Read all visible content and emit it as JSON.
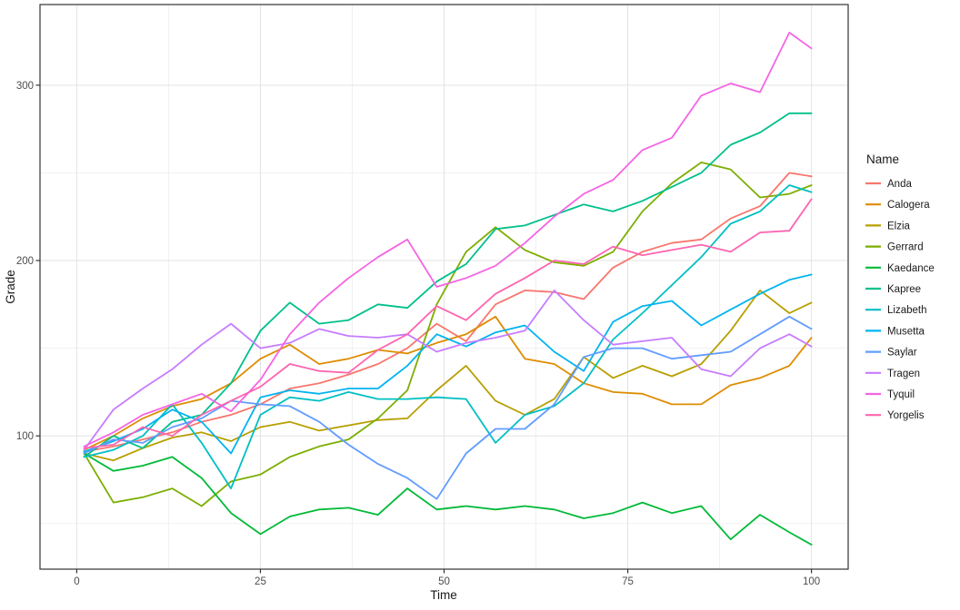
{
  "colors": {
    "background": "#FFFFFF",
    "panel_border": "#333333",
    "grid_major": "#E3E3E3",
    "grid_minor": "#F0F0F0",
    "tick_mark": "#333333",
    "tick_label": "#4D4D4D",
    "axis_title": "#1A1A1A",
    "legend_text": "#1A1A1A"
  },
  "chart_data": {
    "type": "line",
    "title": "",
    "xlabel": "Time",
    "ylabel": "Grade",
    "legend_title": "Name",
    "legend_position": "right",
    "grid": true,
    "xlim": [
      -5,
      105
    ],
    "ylim": [
      24,
      346
    ],
    "x_ticks": [
      0,
      25,
      50,
      75,
      100
    ],
    "x_minor_ticks": [
      12.5,
      37.5,
      62.5,
      87.5
    ],
    "y_ticks": [
      100,
      200,
      300
    ],
    "y_minor_ticks": [
      50,
      150,
      250
    ],
    "x": [
      1,
      5,
      9,
      13,
      17,
      21,
      25,
      29,
      33,
      37,
      41,
      45,
      49,
      53,
      57,
      61,
      65,
      69,
      73,
      77,
      81,
      85,
      89,
      93,
      97,
      100
    ],
    "series": [
      {
        "name": "Anda",
        "color": "#F8766D",
        "values": [
          91,
          94,
          98,
          102,
          108,
          112,
          118,
          127,
          130,
          135,
          141,
          150,
          164,
          154,
          175,
          183,
          182,
          178,
          196,
          205,
          210,
          212,
          224,
          231,
          250,
          248
        ]
      },
      {
        "name": "Calogera",
        "color": "#DE8C00",
        "values": [
          92,
          100,
          110,
          117,
          121,
          130,
          144,
          152,
          141,
          144,
          149,
          147,
          153,
          158,
          168,
          144,
          141,
          130,
          125,
          124,
          118,
          118,
          129,
          133,
          140,
          156
        ]
      },
      {
        "name": "Elzia",
        "color": "#B79F00",
        "values": [
          90,
          86,
          93,
          99,
          102,
          97,
          105,
          108,
          103,
          106,
          109,
          110,
          126,
          140,
          120,
          112,
          121,
          145,
          133,
          140,
          134,
          141,
          160,
          183,
          170,
          176
        ]
      },
      {
        "name": "Gerrard",
        "color": "#7CAE00",
        "values": [
          90,
          62,
          65,
          70,
          60,
          74,
          78,
          88,
          94,
          98,
          110,
          126,
          175,
          205,
          219,
          206,
          199,
          197,
          205,
          228,
          244,
          256,
          252,
          236,
          238,
          243
        ]
      },
      {
        "name": "Kaedance",
        "color": "#00BA38",
        "values": [
          90,
          80,
          83,
          88,
          76,
          56,
          44,
          54,
          58,
          59,
          55,
          70,
          58,
          60,
          58,
          60,
          58,
          53,
          56,
          62,
          56,
          60,
          41,
          55,
          45,
          38
        ]
      },
      {
        "name": "Kapree",
        "color": "#00C08B",
        "values": [
          88,
          100,
          93,
          108,
          112,
          130,
          160,
          176,
          164,
          166,
          175,
          173,
          188,
          198,
          218,
          220,
          226,
          232,
          228,
          234,
          242,
          250,
          266,
          273,
          284,
          284
        ]
      },
      {
        "name": "Lizabeth",
        "color": "#00BFC4",
        "values": [
          88,
          92,
          100,
          118,
          96,
          70,
          112,
          122,
          120,
          125,
          121,
          121,
          122,
          121,
          96,
          112,
          117,
          130,
          155,
          170,
          186,
          202,
          221,
          228,
          243,
          239
        ]
      },
      {
        "name": "Musetta",
        "color": "#00B4F0",
        "values": [
          91,
          97,
          104,
          115,
          108,
          90,
          122,
          126,
          124,
          127,
          127,
          140,
          158,
          151,
          159,
          163,
          148,
          137,
          165,
          174,
          177,
          163,
          172,
          181,
          189,
          192
        ]
      },
      {
        "name": "Saylar",
        "color": "#619CFF",
        "values": [
          90,
          98,
          96,
          105,
          110,
          120,
          118,
          117,
          108,
          95,
          84,
          76,
          64,
          90,
          104,
          104,
          118,
          145,
          150,
          150,
          144,
          146,
          148,
          158,
          168,
          161
        ]
      },
      {
        "name": "Tragen",
        "color": "#C77CFF",
        "values": [
          92,
          115,
          127,
          138,
          152,
          164,
          150,
          153,
          161,
          157,
          156,
          158,
          148,
          153,
          156,
          160,
          183,
          166,
          152,
          154,
          156,
          138,
          134,
          150,
          158,
          151
        ]
      },
      {
        "name": "Tyquil",
        "color": "#F564E3",
        "values": [
          94,
          102,
          112,
          118,
          124,
          114,
          132,
          158,
          176,
          190,
          202,
          212,
          185,
          190,
          197,
          210,
          225,
          238,
          246,
          263,
          270,
          294,
          301,
          296,
          330,
          321
        ]
      },
      {
        "name": "Yorgelis",
        "color": "#FF64B0",
        "values": [
          93,
          95,
          105,
          100,
          112,
          120,
          128,
          141,
          137,
          136,
          149,
          158,
          174,
          166,
          181,
          190,
          200,
          198,
          208,
          203,
          206,
          209,
          205,
          216,
          217,
          235
        ]
      }
    ]
  }
}
